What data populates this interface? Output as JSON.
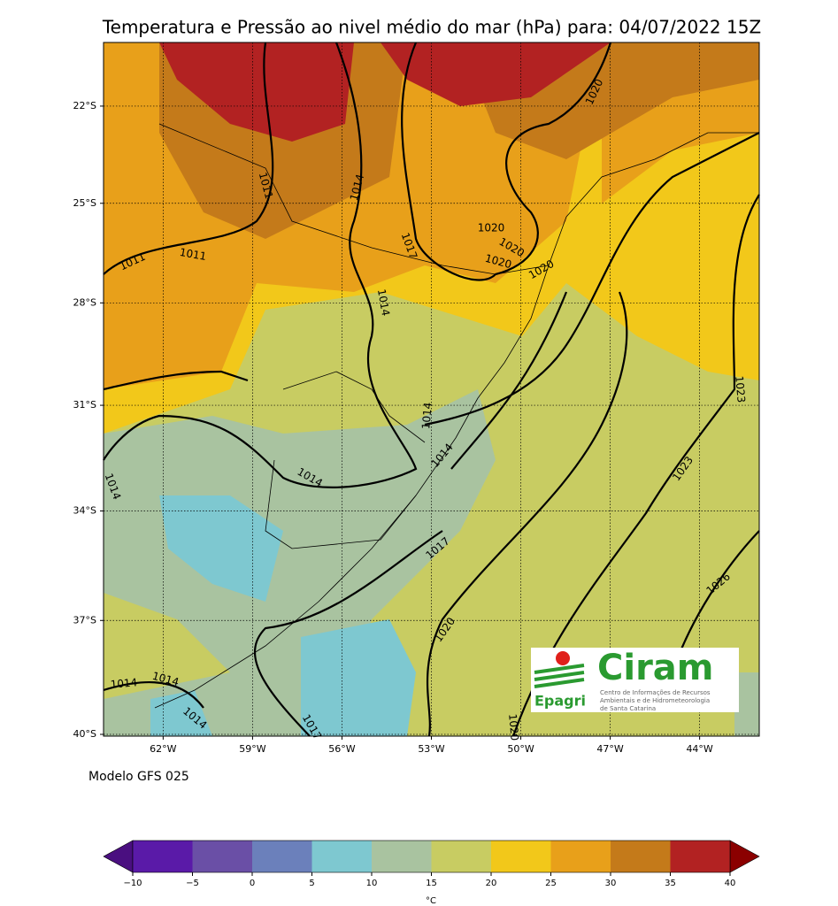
{
  "title": "Temperatura e Pressão ao nivel médio do mar (hPa) para: 04/07/2022 15Z",
  "map": {
    "xlim": [
      -64,
      -42
    ],
    "ylim": [
      -40,
      -20
    ],
    "lat_ticks": [
      {
        "value": -22,
        "label": "22°S"
      },
      {
        "value": -25,
        "label": "25°S"
      },
      {
        "value": -28,
        "label": "28°S"
      },
      {
        "value": -31,
        "label": "31°S"
      },
      {
        "value": -34,
        "label": "34°S"
      },
      {
        "value": -37,
        "label": "37°S"
      },
      {
        "value": -40,
        "label": "40°S"
      }
    ],
    "lon_ticks": [
      {
        "value": -62,
        "label": "62°W"
      },
      {
        "value": -59,
        "label": "59°W"
      },
      {
        "value": -56,
        "label": "56°W"
      },
      {
        "value": -53,
        "label": "53°W"
      },
      {
        "value": -50,
        "label": "50°W"
      },
      {
        "value": -47,
        "label": "47°W"
      },
      {
        "value": -44,
        "label": "44°W"
      }
    ],
    "contour_labels": [
      "1011",
      "1014",
      "1011",
      "1011",
      "1020",
      "1020",
      "1020",
      "1020",
      "1017",
      "1014",
      "1020",
      "1014",
      "1014",
      "1014",
      "1014",
      "1023",
      "1023",
      "1017",
      "1026",
      "1020",
      "1014",
      "1014",
      "1014",
      "1017",
      "1020"
    ]
  },
  "model": "Modelo GFS 025",
  "logo": {
    "name": "Ciram",
    "org": "Epagri",
    "lines": [
      "Centro de Informações de Recursos",
      "Ambientais e de Hidrometeorologia",
      "de Santa Catarina"
    ]
  },
  "colorbar": {
    "ticks": [
      {
        "value": -10,
        "label": "−10"
      },
      {
        "value": -5,
        "label": "−5"
      },
      0,
      5,
      10,
      15,
      20,
      25,
      30,
      35,
      40
    ],
    "colors": [
      "#4a0f80",
      "#5a1aa8",
      "#6a4fa6",
      "#6b80bb",
      "#7ec8d0",
      "#a9c3a0",
      "#c8cc62",
      "#f2c81a",
      "#e8a01a",
      "#c47a1a",
      "#b22222",
      "#8b0000"
    ],
    "unit": "°C"
  }
}
